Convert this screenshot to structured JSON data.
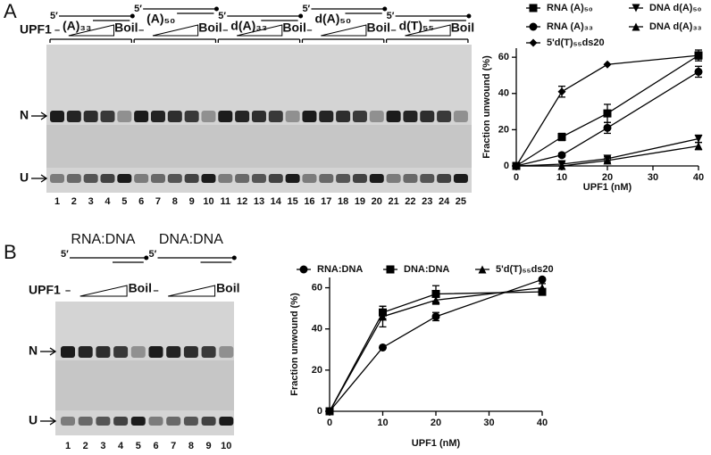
{
  "figure": {
    "panel_labels": [
      "A",
      "B"
    ]
  },
  "gels": [
    {
      "substrates": [
        "(A)₃₃",
        "(A)₅₀",
        "d(A)₃₃",
        "d(A)₅₀",
        "d(T)₅₅"
      ],
      "five_prime": "5′",
      "titration": "UPF1",
      "no_protein": "–",
      "boil": "Boil",
      "band_labels": [
        "N",
        "U"
      ],
      "lanes": [
        1,
        2,
        3,
        4,
        5,
        6,
        7,
        8,
        9,
        10,
        11,
        12,
        13,
        14,
        15,
        16,
        17,
        18,
        19,
        20,
        21,
        22,
        23,
        24,
        25
      ]
    },
    {
      "substrates": [
        "RNA:DNA",
        "DNA:DNA"
      ],
      "five_prime": "5′",
      "titration": "UPF1",
      "no_protein": "–",
      "boil": "Boil",
      "band_labels": [
        "N",
        "U"
      ],
      "lanes": [
        1,
        2,
        3,
        4,
        5,
        6,
        7,
        8,
        9,
        10
      ]
    }
  ],
  "chart_data": [
    {
      "type": "line",
      "x_label": "UPF1 (nM)",
      "y_label": "Fraction unwound (%)",
      "x": [
        0,
        10,
        20,
        40
      ],
      "xlim": [
        0,
        40
      ],
      "xticks": [
        0,
        10,
        20,
        30,
        40
      ],
      "ylim": [
        0,
        65
      ],
      "yticks": [
        0,
        20,
        40,
        60
      ],
      "series": [
        {
          "name": "RNA (A)₅₀",
          "color": "#000000",
          "marker": "square",
          "values": [
            0,
            16,
            29,
            61
          ],
          "errors": [
            0,
            2,
            5,
            3
          ]
        },
        {
          "name": "RNA (A)₃₃",
          "color": "#000000",
          "marker": "circle",
          "values": [
            0,
            6,
            21,
            52
          ],
          "errors": [
            0,
            1,
            3,
            3
          ]
        },
        {
          "name": "5'd(T)₅₅ds20",
          "color": "#000000",
          "marker": "diamond",
          "values": [
            0,
            41,
            56,
            61
          ],
          "errors": [
            0,
            3,
            0,
            2
          ]
        },
        {
          "name": "DNA d(A)₅₀",
          "color": "#000000",
          "marker": "triangle-down",
          "values": [
            0,
            1,
            4,
            15
          ],
          "errors": [
            0,
            1,
            1,
            2
          ]
        },
        {
          "name": "DNA d(A)₃₃",
          "color": "#000000",
          "marker": "triangle-up",
          "values": [
            0,
            0,
            3,
            11
          ],
          "errors": [
            0,
            0,
            1,
            2
          ]
        }
      ]
    },
    {
      "type": "line",
      "x_label": "UPF1 (nM)",
      "y_label": "Fraction unwound (%)",
      "x": [
        0,
        10,
        20,
        40
      ],
      "xlim": [
        0,
        40
      ],
      "xticks": [
        0,
        10,
        20,
        30,
        40
      ],
      "ylim": [
        0,
        65
      ],
      "yticks": [
        0,
        20,
        40,
        60
      ],
      "series": [
        {
          "name": "RNA:DNA",
          "color": "#000000",
          "marker": "circle",
          "values": [
            0,
            31,
            46,
            64
          ],
          "errors": [
            0,
            0,
            2,
            0
          ]
        },
        {
          "name": "DNA:DNA",
          "color": "#000000",
          "marker": "square",
          "values": [
            0,
            48,
            57,
            58
          ],
          "errors": [
            0,
            3,
            4,
            1
          ]
        },
        {
          "name": "5'd(T)₅₅ds20",
          "color": "#000000",
          "marker": "triangle-up",
          "values": [
            0,
            46,
            54,
            60
          ],
          "errors": [
            0,
            5,
            2,
            2
          ]
        }
      ]
    }
  ]
}
